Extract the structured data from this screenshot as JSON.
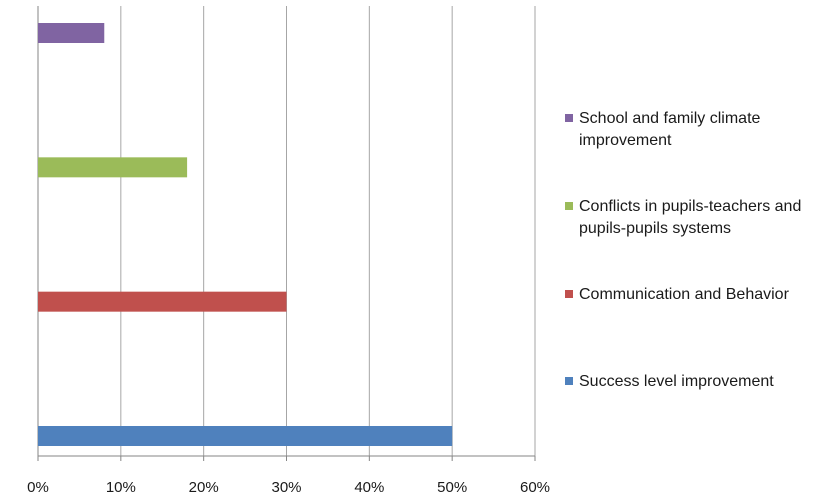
{
  "chart_data": {
    "type": "bar",
    "orientation": "horizontal",
    "categories": [
      "School and family climate improvement",
      "Conflicts in pupils-teachers and pupils-pupils systems",
      "Communication and Behavior",
      "Success level improvement"
    ],
    "values": [
      8,
      18,
      30,
      50
    ],
    "colors": [
      "#8064A2",
      "#9BBB59",
      "#C0504D",
      "#4F81BD"
    ],
    "xlim": [
      0,
      60
    ],
    "xticks": [
      "0%",
      "10%",
      "20%",
      "30%",
      "40%",
      "50%",
      "60%"
    ],
    "grid": true,
    "legend_position": "right",
    "title": "",
    "xlabel": "",
    "ylabel": ""
  }
}
